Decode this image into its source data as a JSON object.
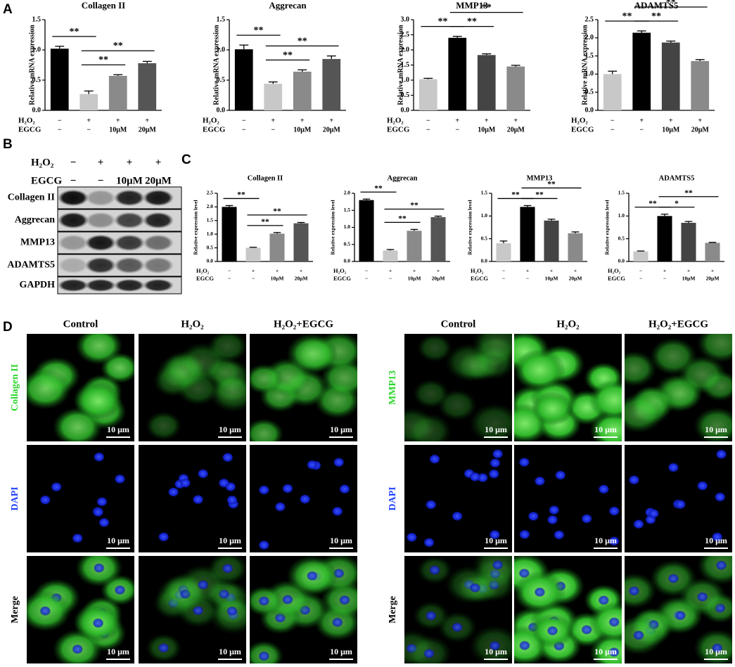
{
  "panel_labels": [
    "A",
    "B",
    "C",
    "D"
  ],
  "chart_data": [
    {
      "type": "bar",
      "title": "Collagen II",
      "ylabel": "Relative mRNA expression",
      "conditions": [
        {
          "name": "H₂O₂",
          "values": [
            "−",
            "+",
            "+",
            "+"
          ]
        },
        {
          "name": "EGCG",
          "values": [
            "−",
            "−",
            "10μM",
            "20μM"
          ]
        }
      ],
      "values": [
        1.02,
        0.27,
        0.57,
        0.78
      ],
      "errors": [
        0.04,
        0.05,
        0.02,
        0.03
      ],
      "colors": [
        "#000000",
        "#c8c8c8",
        "#8a8a8a",
        "#555555"
      ],
      "ylim": [
        0,
        1.5
      ],
      "yticks": [
        {
          "value": 0,
          "label": "0.0"
        },
        0.5,
        {
          "value": 1,
          "label": "1.0"
        },
        1.5
      ],
      "comparisons": [
        {
          "groups": [
            0,
            1
          ],
          "label": "**"
        },
        {
          "groups": [
            1,
            2
          ],
          "label": "**"
        },
        {
          "groups": [
            1,
            3
          ],
          "label": "**"
        }
      ]
    },
    {
      "type": "bar",
      "title": "Aggrecan",
      "ylabel": "Relative mRNA expression",
      "conditions": [
        {
          "name": "H₂O₂",
          "values": [
            "−",
            "+",
            "+",
            "+"
          ]
        },
        {
          "name": "EGCG",
          "values": [
            "−",
            "−",
            "10μM",
            "20μM"
          ]
        }
      ],
      "values": [
        1.01,
        0.44,
        0.64,
        0.85
      ],
      "errors": [
        0.07,
        0.03,
        0.03,
        0.05
      ],
      "colors": [
        "#000000",
        "#c8c8c8",
        "#8a8a8a",
        "#555555"
      ],
      "ylim": [
        0,
        1.5
      ],
      "yticks": [
        {
          "value": 0,
          "label": "0.0"
        },
        0.5,
        {
          "value": 1,
          "label": "1.0"
        },
        1.5
      ],
      "comparisons": [
        {
          "groups": [
            0,
            1
          ],
          "label": "**"
        },
        {
          "groups": [
            1,
            2
          ],
          "label": "**"
        },
        {
          "groups": [
            1,
            3
          ],
          "label": "**"
        }
      ]
    },
    {
      "type": "bar",
      "title": "MMP13",
      "ylabel": "Relative mRNA expression",
      "conditions": [
        {
          "name": "H₂O₂",
          "values": [
            "−",
            "+",
            "+",
            "+"
          ]
        },
        {
          "name": "EGCG",
          "values": [
            "−",
            "−",
            "10μM",
            "20μM"
          ]
        }
      ],
      "values": [
        1.03,
        2.4,
        1.83,
        1.45
      ],
      "errors": [
        0.03,
        0.05,
        0.04,
        0.04
      ],
      "colors": [
        "#c8c8c8",
        "#000000",
        "#444444",
        "#8a8a8a"
      ],
      "ylim": [
        0,
        3
      ],
      "yticks": [
        {
          "value": 0,
          "label": "0.0"
        },
        0.5,
        {
          "value": 1,
          "label": "1.0"
        },
        1.5,
        {
          "value": 2,
          "label": "2.0"
        },
        2.5,
        {
          "value": 3,
          "label": "3.0"
        }
      ],
      "comparisons": [
        {
          "groups": [
            0,
            1
          ],
          "label": "**"
        },
        {
          "groups": [
            1,
            2
          ],
          "label": "**"
        },
        {
          "groups": [
            1,
            3
          ],
          "label": "**"
        }
      ]
    },
    {
      "type": "bar",
      "title": "ADAMTS5",
      "ylabel": "Relative mRNA expression",
      "conditions": [
        {
          "name": "H₂O₂",
          "values": [
            "−",
            "+",
            "+",
            "+"
          ]
        },
        {
          "name": "EGCG",
          "values": [
            "−",
            "−",
            "10μM",
            "20μM"
          ]
        }
      ],
      "values": [
        1.0,
        2.14,
        1.87,
        1.36
      ],
      "errors": [
        0.08,
        0.05,
        0.04,
        0.04
      ],
      "colors": [
        "#c8c8c8",
        "#000000",
        "#444444",
        "#8a8a8a"
      ],
      "ylim": [
        0,
        2.5
      ],
      "yticks": [
        {
          "value": 0,
          "label": "0.0"
        },
        0.5,
        {
          "value": 1,
          "label": "1.0"
        },
        1.5,
        {
          "value": 2,
          "label": "2.0"
        },
        2.5
      ],
      "comparisons": [
        {
          "groups": [
            0,
            1
          ],
          "label": "**"
        },
        {
          "groups": [
            1,
            2
          ],
          "label": "**"
        },
        {
          "groups": [
            1,
            3
          ],
          "label": "**"
        }
      ]
    },
    {
      "type": "bar",
      "title": "Collagen II",
      "ylabel": "Relative expression level",
      "conditions": [
        {
          "name": "H₂O₂",
          "values": [
            "−",
            "+",
            "+",
            "+"
          ]
        },
        {
          "name": "EGCG",
          "values": [
            "−",
            "−",
            "10μM",
            "20μM"
          ]
        }
      ],
      "values": [
        2.0,
        0.5,
        1.02,
        1.4
      ],
      "errors": [
        0.05,
        0.02,
        0.04,
        0.03
      ],
      "colors": [
        "#000000",
        "#c8c8c8",
        "#8a8a8a",
        "#555555"
      ],
      "ylim": [
        0,
        2.5
      ],
      "yticks": [
        {
          "value": 0,
          "label": "0.0"
        },
        0.5,
        {
          "value": 1,
          "label": "1.0"
        },
        1.5,
        {
          "value": 2,
          "label": "2.0"
        },
        2.5
      ],
      "comparisons": [
        {
          "groups": [
            0,
            1
          ],
          "label": "**"
        },
        {
          "groups": [
            1,
            2
          ],
          "label": "**"
        },
        {
          "groups": [
            1,
            3
          ],
          "label": "**"
        }
      ]
    },
    {
      "type": "bar",
      "title": "Aggrecan",
      "ylabel": "Relative expression level",
      "conditions": [
        {
          "name": "H₂O₂",
          "values": [
            "−",
            "+",
            "+",
            "+"
          ]
        },
        {
          "name": "EGCG",
          "values": [
            "−",
            "−",
            "10μM",
            "20μM"
          ]
        }
      ],
      "values": [
        1.8,
        0.32,
        0.9,
        1.3
      ],
      "errors": [
        0.03,
        0.03,
        0.04,
        0.03
      ],
      "colors": [
        "#000000",
        "#c8c8c8",
        "#8a8a8a",
        "#555555"
      ],
      "ylim": [
        0,
        2
      ],
      "yticks": [
        {
          "value": 0,
          "label": "0.0"
        },
        0.5,
        {
          "value": 1,
          "label": "1.0"
        },
        1.5,
        {
          "value": 2,
          "label": "2.0"
        }
      ],
      "comparisons": [
        {
          "groups": [
            0,
            1
          ],
          "label": "**"
        },
        {
          "groups": [
            1,
            2
          ],
          "label": "**"
        },
        {
          "groups": [
            1,
            3
          ],
          "label": "**"
        }
      ]
    },
    {
      "type": "bar",
      "title": "MMP13",
      "ylabel": "Relative expression level",
      "conditions": [
        {
          "name": "H₂O₂",
          "values": [
            "−",
            "+",
            "+",
            "+"
          ]
        },
        {
          "name": "EGCG",
          "values": [
            "−",
            "−",
            "10μM",
            "20μM"
          ]
        }
      ],
      "values": [
        0.4,
        1.2,
        0.9,
        0.62
      ],
      "errors": [
        0.05,
        0.03,
        0.03,
        0.03
      ],
      "colors": [
        "#c8c8c8",
        "#000000",
        "#444444",
        "#8a8a8a"
      ],
      "ylim": [
        0,
        1.5
      ],
      "yticks": [
        {
          "value": 0,
          "label": "0.0"
        },
        0.5,
        {
          "value": 1,
          "label": "1.0"
        },
        1.5
      ],
      "comparisons": [
        {
          "groups": [
            0,
            1
          ],
          "label": "**"
        },
        {
          "groups": [
            1,
            2
          ],
          "label": "**"
        },
        {
          "groups": [
            1,
            3
          ],
          "label": "**"
        }
      ]
    },
    {
      "type": "bar",
      "title": "ADAMTS5",
      "ylabel": "Relative expression level",
      "conditions": [
        {
          "name": "H₂O₂",
          "values": [
            "−",
            "+",
            "+",
            "+"
          ]
        },
        {
          "name": "EGCG",
          "values": [
            "−",
            "−",
            "10μM",
            "20μM"
          ]
        }
      ],
      "values": [
        0.22,
        1.0,
        0.85,
        0.41
      ],
      "errors": [
        0.01,
        0.04,
        0.03,
        0.01
      ],
      "colors": [
        "#c8c8c8",
        "#000000",
        "#444444",
        "#8a8a8a"
      ],
      "ylim": [
        0,
        1.5
      ],
      "yticks": [
        {
          "value": 0,
          "label": "0.0"
        },
        0.5,
        {
          "value": 1,
          "label": "1.0"
        },
        1.5
      ],
      "comparisons": [
        {
          "groups": [
            0,
            1
          ],
          "label": "**"
        },
        {
          "groups": [
            1,
            2
          ],
          "label": "*"
        },
        {
          "groups": [
            1,
            3
          ],
          "label": "**"
        }
      ]
    }
  ],
  "blot": {
    "conditions": [
      {
        "name": "H₂O₂",
        "values": [
          "−",
          "+",
          "+",
          "+"
        ]
      },
      {
        "name": "EGCG",
        "values": [
          "−",
          "−",
          "10μM",
          "20μM"
        ]
      }
    ],
    "proteins": [
      "Collagen II",
      "Aggrecan",
      "MMP13",
      "ADAMTS5",
      "GAPDH"
    ]
  },
  "micro": {
    "columns": [
      "Control",
      "H₂O₂",
      "H₂O₂+EGCG"
    ],
    "groups": [
      {
        "rows": [
          "Collagen II",
          "DAPI",
          "Merge"
        ]
      },
      {
        "rows": [
          "MMP13",
          "DAPI",
          "Merge"
        ]
      }
    ],
    "scale_bar": "10 μm"
  }
}
